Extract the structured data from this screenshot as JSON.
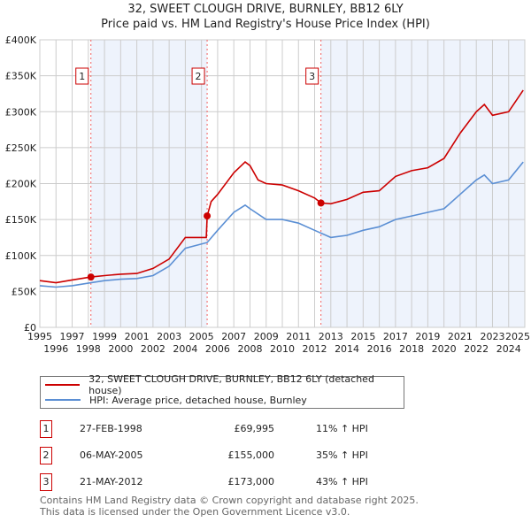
{
  "title": "32, SWEET CLOUGH DRIVE, BURNLEY, BB12 6LY",
  "subtitle": "Price paid vs. HM Land Registry's House Price Index (HPI)",
  "colors": {
    "property": "#cc0000",
    "hpi": "#5b8fd4",
    "shade": "#eef3fc",
    "grid": "#cccccc"
  },
  "chart_data": {
    "type": "line",
    "title": "32, SWEET CLOUGH DRIVE, BURNLEY, BB12 6LY",
    "subtitle": "Price paid vs. HM Land Registry's House Price Index (HPI)",
    "xlim": [
      1995,
      2025
    ],
    "ylim": [
      0,
      400000
    ],
    "x_ticks": [
      "1995",
      "1996",
      "1997",
      "1998",
      "1999",
      "2000",
      "2001",
      "2002",
      "2003",
      "2004",
      "2005",
      "2006",
      "2007",
      "2008",
      "2009",
      "2010",
      "2011",
      "2012",
      "2013",
      "2014",
      "2015",
      "2016",
      "2017",
      "2018",
      "2019",
      "2020",
      "2021",
      "2022",
      "2023",
      "2024",
      "2025"
    ],
    "y_ticks": [
      {
        "v": 0,
        "label": "£0"
      },
      {
        "v": 50000,
        "label": "£50K"
      },
      {
        "v": 100000,
        "label": "£100K"
      },
      {
        "v": 150000,
        "label": "£150K"
      },
      {
        "v": 200000,
        "label": "£200K"
      },
      {
        "v": 250000,
        "label": "£250K"
      },
      {
        "v": 300000,
        "label": "£300K"
      },
      {
        "v": 350000,
        "label": "£350K"
      },
      {
        "v": 400000,
        "label": "£400K"
      }
    ],
    "grid": true,
    "series": [
      {
        "name": "32, SWEET CLOUGH DRIVE, BURNLEY, BB12 6LY (detached house)",
        "key": "property",
        "x": [
          1995,
          1996,
          1997,
          1998.16,
          1999,
          2000,
          2001,
          2002,
          2003,
          2004,
          2005.3,
          2005.35,
          2005.6,
          2006,
          2007,
          2007.7,
          2008,
          2008.5,
          2009,
          2010,
          2011,
          2012,
          2012.39,
          2013,
          2014,
          2015,
          2016,
          2017,
          2018,
          2019,
          2020,
          2021,
          2022,
          2022.5,
          2023,
          2024,
          2024.9
        ],
        "y": [
          65000,
          62000,
          66000,
          69995,
          72000,
          74000,
          75000,
          82000,
          95000,
          125000,
          125000,
          155000,
          175000,
          185000,
          215000,
          230000,
          225000,
          205000,
          200000,
          198000,
          190000,
          180000,
          173000,
          172000,
          178000,
          188000,
          190000,
          210000,
          218000,
          222000,
          235000,
          270000,
          300000,
          310000,
          295000,
          300000,
          330000
        ]
      },
      {
        "name": "HPI: Average price, detached house, Burnley",
        "key": "hpi",
        "x": [
          1995,
          1996,
          1997,
          1998.16,
          1999,
          2000,
          2001,
          2002,
          2003,
          2004,
          2005.35,
          2006,
          2007,
          2007.7,
          2008,
          2009,
          2010,
          2011,
          2012,
          2013,
          2014,
          2015,
          2016,
          2017,
          2018,
          2019,
          2020,
          2021,
          2022,
          2022.5,
          2023,
          2024,
          2024.9
        ],
        "y": [
          58000,
          56000,
          58000,
          62000,
          65000,
          67000,
          68000,
          72000,
          85000,
          110000,
          118000,
          135000,
          160000,
          170000,
          165000,
          150000,
          150000,
          145000,
          135000,
          125000,
          128000,
          135000,
          140000,
          150000,
          155000,
          160000,
          165000,
          185000,
          205000,
          212000,
          200000,
          205000,
          230000
        ]
      }
    ],
    "sales": [
      {
        "n": "1",
        "x": 1998.16,
        "y": 69995
      },
      {
        "n": "2",
        "x": 2005.35,
        "y": 155000
      },
      {
        "n": "3",
        "x": 2012.39,
        "y": 173000
      }
    ],
    "legend": "bottom"
  },
  "legend": {
    "property": "32, SWEET CLOUGH DRIVE, BURNLEY, BB12 6LY (detached house)",
    "hpi": "HPI: Average price, detached house, Burnley"
  },
  "sales_table": [
    {
      "n": "1",
      "date": "27-FEB-1998",
      "price": "£69,995",
      "hpi": "11% ↑ HPI"
    },
    {
      "n": "2",
      "date": "06-MAY-2005",
      "price": "£155,000",
      "hpi": "35% ↑ HPI"
    },
    {
      "n": "3",
      "date": "21-MAY-2012",
      "price": "£173,000",
      "hpi": "43% ↑ HPI"
    }
  ],
  "footer": {
    "line1": "Contains HM Land Registry data © Crown copyright and database right 2025.",
    "line2": "This data is licensed under the Open Government Licence v3.0."
  }
}
